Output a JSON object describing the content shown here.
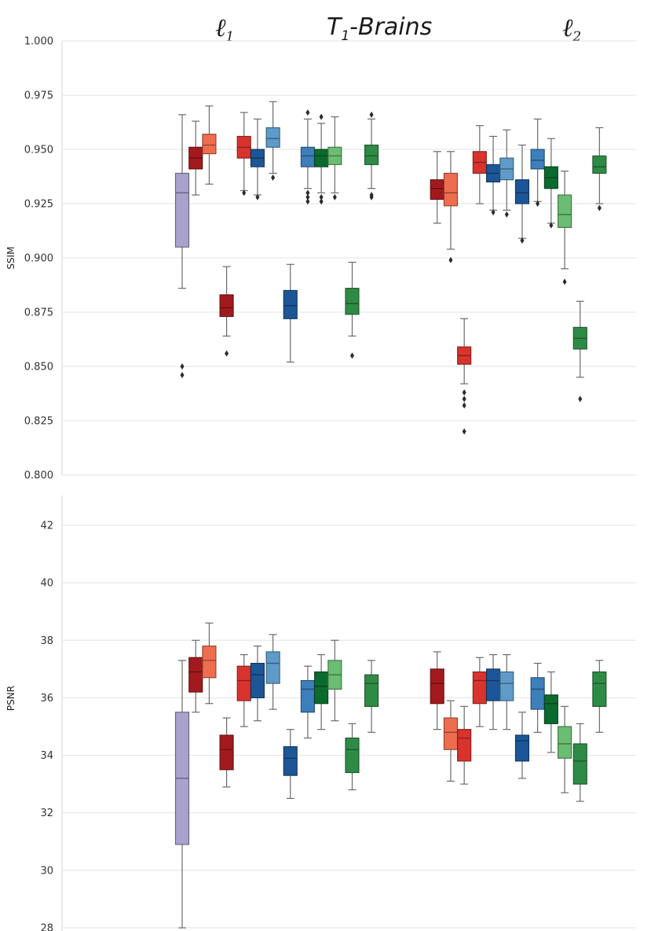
{
  "figure": {
    "title_main": "T",
    "title_sub": "1",
    "title_rest": "-Brains",
    "group_left_base": "ℓ",
    "group_left_sub": "1",
    "group_right_base": "ℓ",
    "group_right_sub": "2"
  },
  "colors": {
    "lavender": "#a8a2cc",
    "darkred": "#a31a1e",
    "salmon": "#ef6d4f",
    "red": "#d9332e",
    "navy": "#1d5696",
    "skyblue": "#5e9bc9",
    "steelblue": "#3c7fbb",
    "darkgreen": "#0b6b2f",
    "lightgreen": "#6bbd72",
    "green": "#2e8b46"
  },
  "chart_data": [
    {
      "type": "box",
      "panel": "ssim",
      "ylabel": "SSIM",
      "ylim": [
        0.8,
        1.0
      ],
      "yticks": [
        0.8,
        0.825,
        0.85,
        0.875,
        0.9,
        0.925,
        0.95,
        0.975,
        1.0
      ],
      "ytick_labels": [
        "0.800",
        "0.825",
        "0.850",
        "0.875",
        "0.900",
        "0.925",
        "0.950",
        "0.975",
        "1.000"
      ],
      "grid": true,
      "boxes": [
        {
          "x": 1.8,
          "color": "lavender",
          "whislo": 0.886,
          "q1": 0.905,
          "med": 0.93,
          "q3": 0.939,
          "whishi": 0.966,
          "fliers": [
            0.85,
            0.846
          ]
        },
        {
          "x": 2.5,
          "color": "darkred",
          "whislo": 0.929,
          "q1": 0.941,
          "med": 0.946,
          "q3": 0.951,
          "whishi": 0.963,
          "fliers": []
        },
        {
          "x": 3.2,
          "color": "salmon",
          "whislo": 0.934,
          "q1": 0.948,
          "med": 0.952,
          "q3": 0.957,
          "whishi": 0.97,
          "fliers": []
        },
        {
          "x": 4.1,
          "color": "darkred",
          "whislo": 0.864,
          "q1": 0.873,
          "med": 0.877,
          "q3": 0.883,
          "whishi": 0.896,
          "fliers": [
            0.856
          ]
        },
        {
          "x": 5.0,
          "color": "red",
          "whislo": 0.931,
          "q1": 0.946,
          "med": 0.951,
          "q3": 0.956,
          "whishi": 0.967,
          "fliers": [
            0.93
          ]
        },
        {
          "x": 5.7,
          "color": "navy",
          "whislo": 0.929,
          "q1": 0.942,
          "med": 0.946,
          "q3": 0.95,
          "whishi": 0.964,
          "fliers": [
            0.928
          ]
        },
        {
          "x": 6.5,
          "color": "skyblue",
          "whislo": 0.939,
          "q1": 0.951,
          "med": 0.955,
          "q3": 0.96,
          "whishi": 0.972,
          "fliers": [
            0.937
          ]
        },
        {
          "x": 7.4,
          "color": "navy",
          "whislo": 0.852,
          "q1": 0.872,
          "med": 0.878,
          "q3": 0.885,
          "whishi": 0.897,
          "fliers": []
        },
        {
          "x": 8.3,
          "color": "steelblue",
          "whislo": 0.932,
          "q1": 0.942,
          "med": 0.947,
          "q3": 0.951,
          "whishi": 0.964,
          "fliers": [
            0.93,
            0.928,
            0.926,
            0.967
          ]
        },
        {
          "x": 9.0,
          "color": "darkgreen",
          "whislo": 0.93,
          "q1": 0.942,
          "med": 0.947,
          "q3": 0.95,
          "whishi": 0.962,
          "fliers": [
            0.928,
            0.926,
            0.965
          ]
        },
        {
          "x": 9.7,
          "color": "lightgreen",
          "whislo": 0.93,
          "q1": 0.943,
          "med": 0.947,
          "q3": 0.951,
          "whishi": 0.965,
          "fliers": [
            0.928
          ]
        },
        {
          "x": 10.6,
          "color": "green",
          "whislo": 0.864,
          "q1": 0.874,
          "med": 0.879,
          "q3": 0.886,
          "whishi": 0.898,
          "fliers": [
            0.855
          ]
        },
        {
          "x": 11.6,
          "color": "green",
          "whislo": 0.932,
          "q1": 0.943,
          "med": 0.947,
          "q3": 0.952,
          "whishi": 0.964,
          "fliers": [
            0.929,
            0.928,
            0.966
          ]
        },
        {
          "x": 15.0,
          "color": "darkred",
          "whislo": 0.916,
          "q1": 0.927,
          "med": 0.932,
          "q3": 0.936,
          "whishi": 0.949,
          "fliers": []
        },
        {
          "x": 15.7,
          "color": "salmon",
          "whislo": 0.904,
          "q1": 0.924,
          "med": 0.93,
          "q3": 0.939,
          "whishi": 0.949,
          "fliers": [
            0.899
          ]
        },
        {
          "x": 16.4,
          "color": "red",
          "whislo": 0.842,
          "q1": 0.851,
          "med": 0.855,
          "q3": 0.859,
          "whishi": 0.872,
          "fliers": [
            0.838,
            0.835,
            0.832,
            0.82
          ]
        },
        {
          "x": 17.2,
          "color": "red",
          "whislo": 0.925,
          "q1": 0.939,
          "med": 0.944,
          "q3": 0.949,
          "whishi": 0.961,
          "fliers": []
        },
        {
          "x": 17.9,
          "color": "navy",
          "whislo": 0.922,
          "q1": 0.935,
          "med": 0.939,
          "q3": 0.943,
          "whishi": 0.956,
          "fliers": [
            0.921
          ]
        },
        {
          "x": 18.6,
          "color": "skyblue",
          "whislo": 0.922,
          "q1": 0.936,
          "med": 0.941,
          "q3": 0.946,
          "whishi": 0.959,
          "fliers": [
            0.92
          ]
        },
        {
          "x": 19.4,
          "color": "navy",
          "whislo": 0.909,
          "q1": 0.925,
          "med": 0.93,
          "q3": 0.936,
          "whishi": 0.952,
          "fliers": [
            0.908
          ]
        },
        {
          "x": 20.2,
          "color": "steelblue",
          "whislo": 0.926,
          "q1": 0.941,
          "med": 0.945,
          "q3": 0.95,
          "whishi": 0.964,
          "fliers": [
            0.925
          ]
        },
        {
          "x": 20.9,
          "color": "darkgreen",
          "whislo": 0.916,
          "q1": 0.932,
          "med": 0.937,
          "q3": 0.942,
          "whishi": 0.955,
          "fliers": [
            0.915
          ]
        },
        {
          "x": 21.6,
          "color": "lightgreen",
          "whislo": 0.895,
          "q1": 0.914,
          "med": 0.92,
          "q3": 0.929,
          "whishi": 0.94,
          "fliers": [
            0.889
          ]
        },
        {
          "x": 22.4,
          "color": "green",
          "whislo": 0.845,
          "q1": 0.858,
          "med": 0.863,
          "q3": 0.868,
          "whishi": 0.88,
          "fliers": [
            0.835
          ]
        },
        {
          "x": 23.4,
          "color": "green",
          "whislo": 0.925,
          "q1": 0.939,
          "med": 0.942,
          "q3": 0.947,
          "whishi": 0.96,
          "fliers": [
            0.923
          ]
        }
      ]
    },
    {
      "type": "box",
      "panel": "psnr",
      "ylabel": "PSNR",
      "ylim": [
        28,
        43
      ],
      "yticks": [
        28,
        30,
        32,
        34,
        36,
        38,
        40,
        42
      ],
      "ytick_labels": [
        "28",
        "30",
        "32",
        "34",
        "36",
        "38",
        "40",
        "42"
      ],
      "grid": true,
      "boxes": [
        {
          "x": 1.8,
          "color": "lavender",
          "whislo": 28.0,
          "q1": 30.9,
          "med": 33.2,
          "q3": 35.5,
          "whishi": 37.3,
          "fliers": []
        },
        {
          "x": 2.5,
          "color": "darkred",
          "whislo": 35.5,
          "q1": 36.2,
          "med": 36.9,
          "q3": 37.4,
          "whishi": 38.0,
          "fliers": []
        },
        {
          "x": 3.2,
          "color": "salmon",
          "whislo": 35.8,
          "q1": 36.7,
          "med": 37.3,
          "q3": 37.8,
          "whishi": 38.6,
          "fliers": []
        },
        {
          "x": 4.1,
          "color": "darkred",
          "whislo": 32.9,
          "q1": 33.5,
          "med": 34.2,
          "q3": 34.7,
          "whishi": 35.3,
          "fliers": []
        },
        {
          "x": 5.0,
          "color": "red",
          "whislo": 35.0,
          "q1": 35.9,
          "med": 36.6,
          "q3": 37.1,
          "whishi": 37.5,
          "fliers": []
        },
        {
          "x": 5.7,
          "color": "navy",
          "whislo": 35.2,
          "q1": 36.0,
          "med": 36.8,
          "q3": 37.2,
          "whishi": 37.8,
          "fliers": []
        },
        {
          "x": 6.5,
          "color": "skyblue",
          "whislo": 35.6,
          "q1": 36.5,
          "med": 37.2,
          "q3": 37.6,
          "whishi": 38.2,
          "fliers": []
        },
        {
          "x": 7.4,
          "color": "navy",
          "whislo": 32.5,
          "q1": 33.3,
          "med": 33.9,
          "q3": 34.3,
          "whishi": 34.9,
          "fliers": []
        },
        {
          "x": 8.3,
          "color": "steelblue",
          "whislo": 34.6,
          "q1": 35.5,
          "med": 36.3,
          "q3": 36.6,
          "whishi": 37.1,
          "fliers": []
        },
        {
          "x": 9.0,
          "color": "darkgreen",
          "whislo": 34.9,
          "q1": 35.8,
          "med": 36.4,
          "q3": 36.9,
          "whishi": 37.5,
          "fliers": []
        },
        {
          "x": 9.7,
          "color": "lightgreen",
          "whislo": 35.2,
          "q1": 36.3,
          "med": 36.8,
          "q3": 37.3,
          "whishi": 38.0,
          "fliers": []
        },
        {
          "x": 10.6,
          "color": "green",
          "whislo": 32.8,
          "q1": 33.4,
          "med": 34.2,
          "q3": 34.6,
          "whishi": 35.1,
          "fliers": []
        },
        {
          "x": 11.6,
          "color": "green",
          "whislo": 34.8,
          "q1": 35.7,
          "med": 36.5,
          "q3": 36.8,
          "whishi": 37.3,
          "fliers": []
        },
        {
          "x": 15.0,
          "color": "darkred",
          "whislo": 34.9,
          "q1": 35.8,
          "med": 36.5,
          "q3": 37.0,
          "whishi": 37.6,
          "fliers": []
        },
        {
          "x": 15.7,
          "color": "salmon",
          "whislo": 33.1,
          "q1": 34.2,
          "med": 34.8,
          "q3": 35.3,
          "whishi": 35.9,
          "fliers": []
        },
        {
          "x": 16.4,
          "color": "red",
          "whislo": 33.0,
          "q1": 33.8,
          "med": 34.6,
          "q3": 34.9,
          "whishi": 35.7,
          "fliers": []
        },
        {
          "x": 17.2,
          "color": "red",
          "whislo": 35.0,
          "q1": 35.8,
          "med": 36.6,
          "q3": 36.9,
          "whishi": 37.4,
          "fliers": []
        },
        {
          "x": 17.9,
          "color": "navy",
          "whislo": 34.9,
          "q1": 35.9,
          "med": 36.6,
          "q3": 37.0,
          "whishi": 37.5,
          "fliers": []
        },
        {
          "x": 18.6,
          "color": "skyblue",
          "whislo": 34.9,
          "q1": 35.9,
          "med": 36.5,
          "q3": 36.9,
          "whishi": 37.5,
          "fliers": []
        },
        {
          "x": 19.4,
          "color": "navy",
          "whislo": 33.2,
          "q1": 33.8,
          "med": 34.5,
          "q3": 34.7,
          "whishi": 35.5,
          "fliers": []
        },
        {
          "x": 20.2,
          "color": "steelblue",
          "whislo": 34.8,
          "q1": 35.6,
          "med": 36.3,
          "q3": 36.7,
          "whishi": 37.2,
          "fliers": []
        },
        {
          "x": 20.9,
          "color": "darkgreen",
          "whislo": 34.1,
          "q1": 35.1,
          "med": 35.8,
          "q3": 36.1,
          "whishi": 36.9,
          "fliers": []
        },
        {
          "x": 21.6,
          "color": "lightgreen",
          "whislo": 32.7,
          "q1": 33.9,
          "med": 34.4,
          "q3": 35.0,
          "whishi": 35.7,
          "fliers": []
        },
        {
          "x": 22.4,
          "color": "green",
          "whislo": 32.4,
          "q1": 33.0,
          "med": 33.8,
          "q3": 34.4,
          "whishi": 35.1,
          "fliers": []
        },
        {
          "x": 23.4,
          "color": "green",
          "whislo": 34.8,
          "q1": 35.7,
          "med": 36.5,
          "q3": 36.9,
          "whishi": 37.3,
          "fliers": []
        }
      ]
    }
  ]
}
